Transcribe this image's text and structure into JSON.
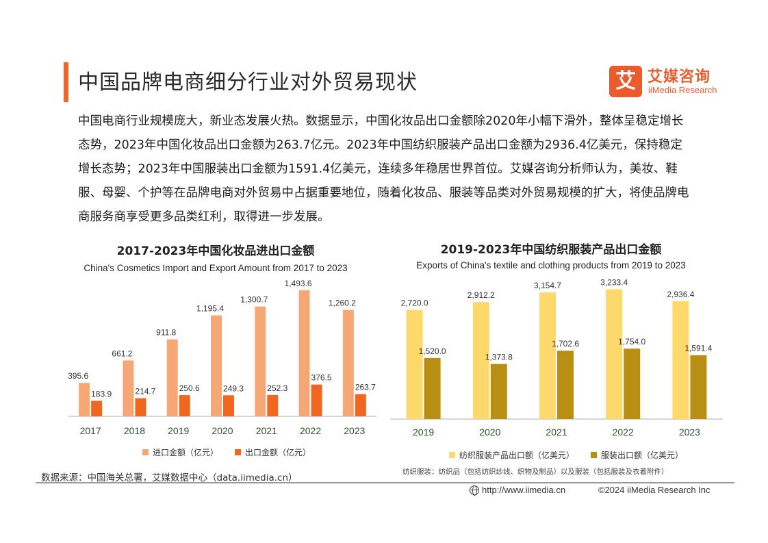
{
  "header": {
    "title": "中国品牌电商细分行业对外贸易现状",
    "logo_mark": "艾",
    "logo_cn": "艾媒咨询",
    "logo_en": "iiMedia Research",
    "accent_color": "#f0642c"
  },
  "intro_text": "中国电商行业规模庞大，新业态发展火热。数据显示，中国化妆品出口金额除2020年小幅下滑外，整体呈稳定增长态势，2023年中国化妆品出口金额为263.7亿元。2023年中国纺织服装产品出口金额为2936.4亿美元，保持稳定增长态势；2023年中国服装出口金额为1591.4亿美元，连续多年稳居世界首位。艾媒咨询分析师认为，美妆、鞋服、母婴、个护等在品牌电商对外贸易中占据重要地位，随着化妆品、服装等品类对外贸易规模的扩大，将使品牌电商服务商享受更多品类红利，取得进一步发展。",
  "chart_data": [
    {
      "type": "bar",
      "title": "2017-2023年中国化妆品进出口金额",
      "subtitle": "China's Cosmetics Import and Export Amount from 2017 to 2023",
      "categories": [
        "2017",
        "2018",
        "2019",
        "2020",
        "2021",
        "2022",
        "2023"
      ],
      "series": [
        {
          "name": "进口金额（亿元）",
          "color": "#f7a775",
          "values": [
            395.6,
            661.2,
            911.8,
            1195.4,
            1300.7,
            1493.6,
            1260.2
          ],
          "labels": [
            "395.6",
            "661.2",
            "911.8",
            "1,195.4",
            "1,300.7",
            "1,493.6",
            "1,260.2"
          ]
        },
        {
          "name": "出口金额（亿元）",
          "color": "#f2671f",
          "values": [
            183.9,
            214.7,
            250.6,
            249.3,
            252.3,
            376.5,
            263.7
          ],
          "labels": [
            "183.9",
            "214.7",
            "250.6",
            "249.3",
            "252.3",
            "376.5",
            "263.7"
          ]
        }
      ],
      "ylim": [
        0,
        1500
      ],
      "grid": false,
      "legend": "bottom"
    },
    {
      "type": "bar",
      "title": "2019-2023年中国纺织服装产品出口金额",
      "subtitle": "Exports of China's textile and clothing products from 2019 to 2023",
      "categories": [
        "2019",
        "2020",
        "2021",
        "2022",
        "2023"
      ],
      "series": [
        {
          "name": "纺织服装产品出口额（亿美元）",
          "color": "#fdd86a",
          "values": [
            2720.0,
            2912.2,
            3154.7,
            3233.4,
            2936.4
          ],
          "labels": [
            "2,720.0",
            "2,912.2",
            "3,154.7",
            "3,233.4",
            "2,936.4"
          ]
        },
        {
          "name": "服装出口额（亿美元）",
          "color": "#b88f12",
          "values": [
            1520.0,
            1373.8,
            1702.6,
            1754.0,
            1591.4
          ],
          "labels": [
            "1,520.0",
            "1,373.8",
            "1,702.6",
            "1,754.0",
            "1,591.4"
          ]
        }
      ],
      "ylim": [
        0,
        3240
      ],
      "grid": false,
      "legend": "bottom"
    }
  ],
  "footer": {
    "source": "数据来源：中国海关总署，艾媒数据中心（data.iimedia.cn）",
    "note": "纺织服装：纺织品（包括纺织纱线、织物及制品）以及服装（包括服装及衣着附件）",
    "url": "http://www.iimedia.cn",
    "copyright": "©2024  iiMedia Research  Inc"
  }
}
